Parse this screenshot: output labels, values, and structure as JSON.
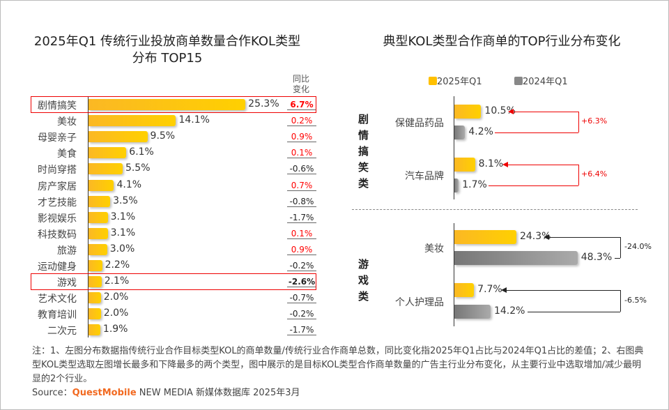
{
  "chart_data": [
    {
      "type": "bar",
      "title": "2025年Q1 传统行业投放商单数量合作KOL类型分布 TOP15",
      "change_header": "同比变化",
      "categories": [
        "剧情搞笑",
        "美妆",
        "母婴亲子",
        "美食",
        "时尚穿搭",
        "房产家居",
        "才艺技能",
        "影视娱乐",
        "科技数码",
        "旅游",
        "运动健身",
        "游戏",
        "艺术文化",
        "教育培训",
        "二次元"
      ],
      "values": [
        25.3,
        14.1,
        9.5,
        6.1,
        5.5,
        4.1,
        3.5,
        3.1,
        3.1,
        3.0,
        2.2,
        2.1,
        2.0,
        2.0,
        1.9
      ],
      "value_labels": [
        "25.3%",
        "14.1%",
        "9.5%",
        "6.1%",
        "5.5%",
        "4.1%",
        "3.5%",
        "3.1%",
        "3.1%",
        "3.0%",
        "2.2%",
        "2.1%",
        "2.0%",
        "2.0%",
        "1.9%"
      ],
      "changes": [
        "6.7%",
        "0.2%",
        "0.9%",
        "0.1%",
        "-0.6%",
        "0.7%",
        "-0.8%",
        "-1.7%",
        "0.1%",
        "0.9%",
        "-0.2%",
        "-2.6%",
        "-0.7%",
        "-0.2%",
        "-1.7%"
      ],
      "highlighted": [
        "剧情搞笑",
        "游戏"
      ]
    },
    {
      "type": "bar",
      "title": "典型KOL类型合作商单的TOP行业分布变化",
      "legend": [
        "2025年Q1",
        "2024年Q1"
      ],
      "legend_colors": [
        "#ffc000",
        "#888888"
      ],
      "groups": [
        {
          "name": "剧情搞笑类",
          "items": [
            {
              "category": "保健品药品",
              "v2025": 10.5,
              "v2024": 4.2,
              "l2025": "10.5%",
              "l2024": "4.2%",
              "diff": "+6.3%"
            },
            {
              "category": "汽车品牌",
              "v2025": 8.1,
              "v2024": 1.7,
              "l2025": "8.1%",
              "l2024": "1.7%",
              "diff": "+6.4%"
            }
          ]
        },
        {
          "name": "游戏类",
          "items": [
            {
              "category": "美妆",
              "v2025": 24.3,
              "v2024": 48.3,
              "l2025": "24.3%",
              "l2024": "48.3%",
              "diff": "-24.0%"
            },
            {
              "category": "个人护理品",
              "v2025": 7.7,
              "v2024": 14.2,
              "l2025": "7.7%",
              "l2024": "14.2%",
              "diff": "-6.5%"
            }
          ]
        }
      ]
    }
  ],
  "colors": {
    "positive": "#ff0000",
    "negative": "#222222",
    "bar": "#ffc000",
    "gray": "#888888"
  },
  "watermark": "QUESTMOBILE",
  "note": "注：1、左图分布数据指传统行业合作目标类型KOL的商单数量/传统行业合作商单总数，同比变化指2025年Q1占比与2024年Q1占比的差值；2、右图典型KOL类型选取左图增长最多和下降最多的两个类型，图中展示的是目标KOL类型合作商单数量的广告主行业分布变化，从主要行业中选取增加/减少最明显的2个行业。",
  "source": {
    "prefix": "Source：",
    "brand": "QuestMobile",
    "suffix": " NEW MEDIA 新媒体数据库 2025年3月"
  }
}
